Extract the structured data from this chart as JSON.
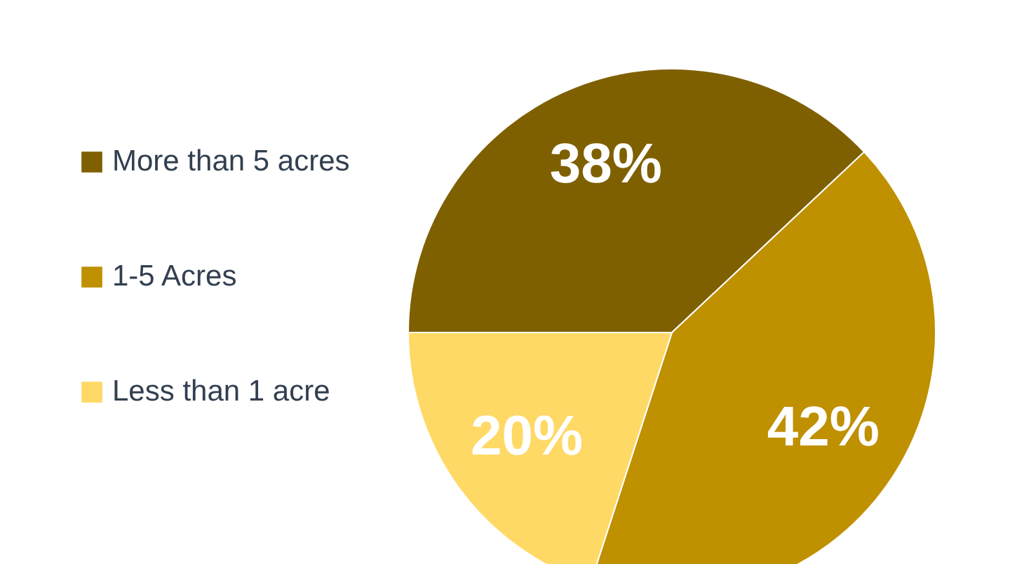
{
  "chart_data": {
    "type": "pie",
    "categories": [
      "More than 5 acres",
      "1-5 Acres",
      "Less than 1 acre"
    ],
    "values": [
      38,
      42,
      20
    ],
    "colors": [
      "#7f6000",
      "#bf9000",
      "#ffd966"
    ],
    "value_labels": [
      "38%",
      "42%",
      "20%"
    ],
    "legend": "left"
  }
}
